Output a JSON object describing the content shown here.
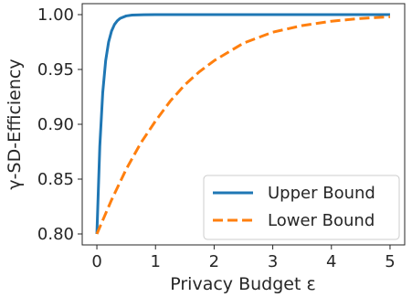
{
  "chart_data": {
    "type": "line",
    "title": "",
    "xlabel": "Privacy Budget ε",
    "ylabel": "γ-SD-Efficiency",
    "xlim": [
      -0.25,
      5.25
    ],
    "ylim": [
      0.79,
      1.01
    ],
    "xticks": [
      0,
      1,
      2,
      3,
      4,
      5
    ],
    "xtick_labels": [
      "0",
      "1",
      "2",
      "3",
      "4",
      "5"
    ],
    "yticks": [
      0.8,
      0.85,
      0.9,
      0.95,
      1.0
    ],
    "ytick_labels": [
      "0.80",
      "0.85",
      "0.90",
      "0.95",
      "1.00"
    ],
    "grid": false,
    "legend_position": "lower-right",
    "series": [
      {
        "name": "Upper Bound",
        "color": "#1f77b4",
        "style": "solid",
        "x": [
          0,
          0.05,
          0.1,
          0.15,
          0.2,
          0.25,
          0.3,
          0.35,
          0.4,
          0.5,
          0.6,
          0.8,
          1.0,
          2.0,
          3.0,
          4.0,
          5.0
        ],
        "y": [
          0.8,
          0.88,
          0.929,
          0.958,
          0.975,
          0.985,
          0.991,
          0.9945,
          0.9967,
          0.9988,
          0.9996,
          0.9999,
          1.0,
          1.0,
          1.0,
          1.0,
          1.0
        ]
      },
      {
        "name": "Lower Bound",
        "color": "#ff7f0e",
        "style": "dashed",
        "x": [
          0,
          0.25,
          0.5,
          0.75,
          1.0,
          1.25,
          1.5,
          1.75,
          2.0,
          2.5,
          3.0,
          3.5,
          4.0,
          4.5,
          5.0
        ],
        "y": [
          0.8,
          0.831,
          0.859,
          0.883,
          0.903,
          0.921,
          0.936,
          0.948,
          0.958,
          0.974,
          0.984,
          0.99,
          0.994,
          0.9965,
          0.998
        ]
      }
    ]
  }
}
